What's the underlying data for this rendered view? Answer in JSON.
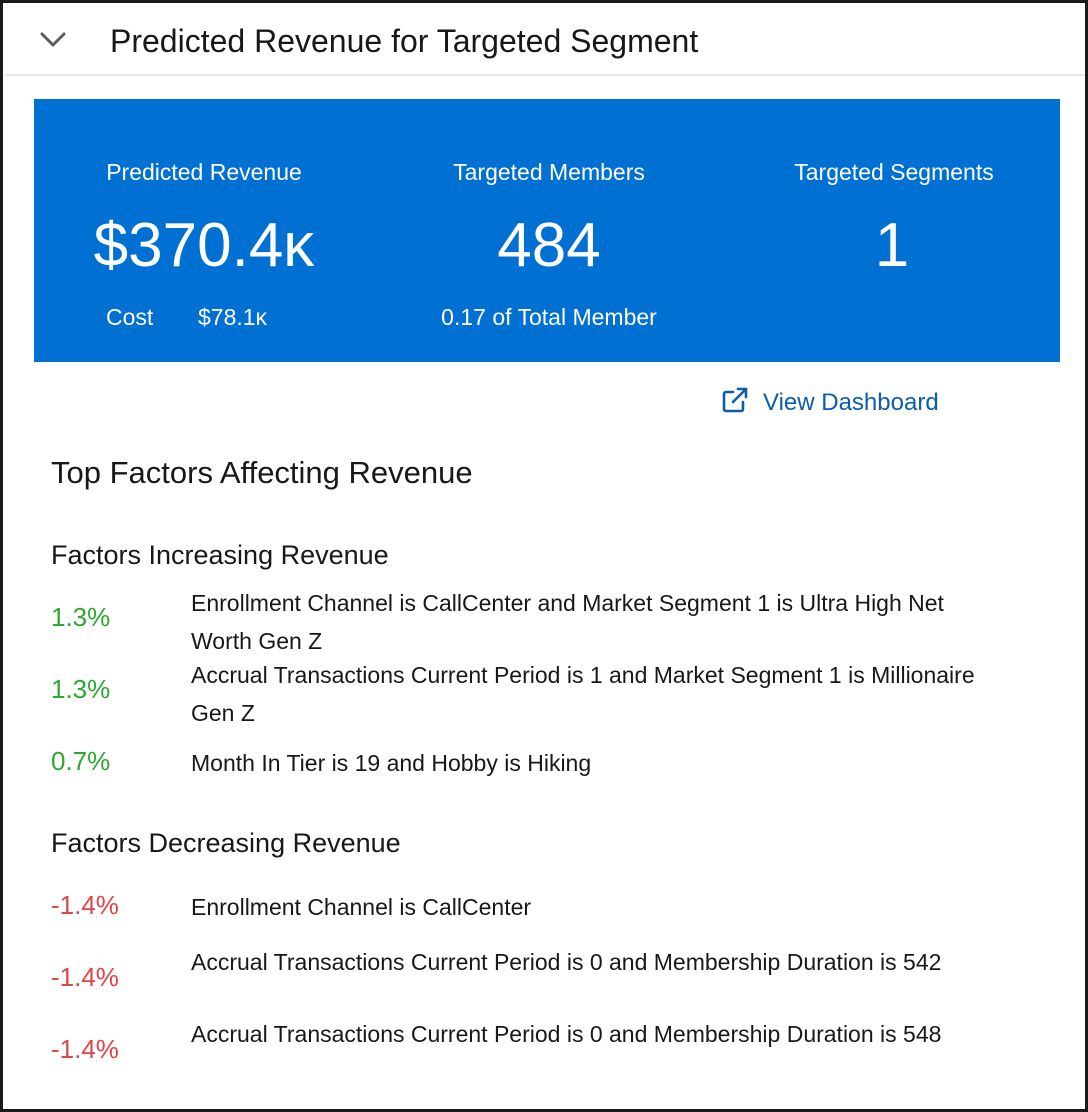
{
  "header": {
    "title": "Predicted Revenue for Targeted Segment"
  },
  "kpis": {
    "revenue": {
      "label": "Predicted Revenue",
      "value": "$370.4ᴋ",
      "cost_label": "Cost",
      "cost_value": "$78.1ᴋ"
    },
    "members": {
      "label": "Targeted Members",
      "value": "484",
      "sub": "0.17 of Total Member"
    },
    "segments": {
      "label": "Targeted Segments",
      "value": "1"
    }
  },
  "dashboard_link": {
    "label": "View Dashboard"
  },
  "factors": {
    "title": "Top Factors Affecting Revenue",
    "increasing": {
      "title": "Factors Increasing Revenue",
      "items": [
        {
          "pct": "1.3%",
          "text": "Enrollment Channel is CallCenter and Market Segment 1 is Ultra High Net Worth Gen Z"
        },
        {
          "pct": "1.3%",
          "text": "Accrual Transactions Current Period is 1 and Market Segment 1 is Millionaire Gen Z"
        },
        {
          "pct": "0.7%",
          "text": "Month In Tier is 19 and Hobby is Hiking"
        }
      ]
    },
    "decreasing": {
      "title": "Factors Decreasing Revenue",
      "items": [
        {
          "pct": "-1.4%",
          "text": "Enrollment Channel is CallCenter"
        },
        {
          "pct": "-1.4%",
          "text": "Accrual Transactions Current Period is 0 and Membership Duration is 542"
        },
        {
          "pct": "-1.4%",
          "text": "Accrual Transactions Current Period is 0 and Membership Duration is 548"
        }
      ]
    }
  },
  "colors": {
    "panel": "#0070d2",
    "positive": "#2ea82e",
    "negative": "#e04444",
    "link": "#0b5cab"
  },
  "icons": {
    "collapse": "chevron-down-icon",
    "external": "external-link-icon"
  }
}
